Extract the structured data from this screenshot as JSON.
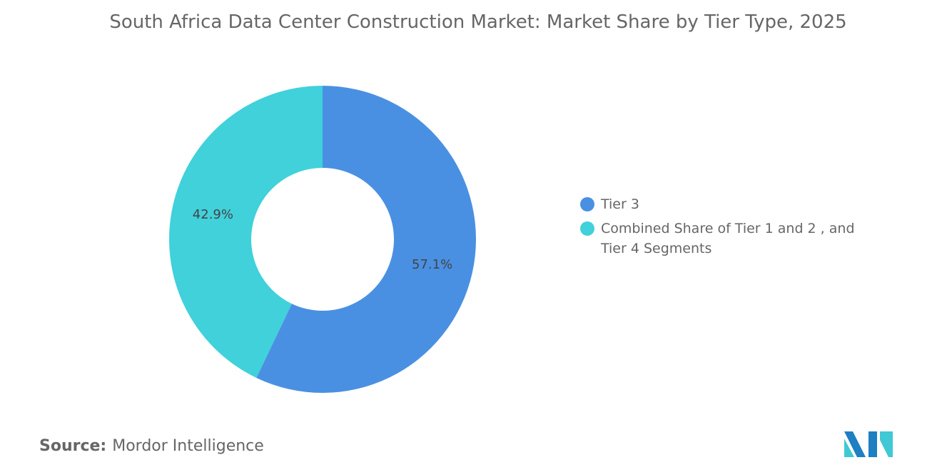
{
  "title": "South Africa Data Center Construction Market: Market Share by Tier Type, 2025",
  "chart_data": {
    "type": "pie",
    "donut": true,
    "title": "South Africa Data Center Construction Market: Market Share by Tier Type, 2025",
    "categories": [
      "Tier 3",
      "Combined Share of Tier 1 and 2 , and Tier 4 Segments"
    ],
    "values": [
      57.1,
      42.9
    ],
    "data_labels": [
      "57.1%",
      "42.9%"
    ],
    "colors": [
      "#4a90e2",
      "#40d1db"
    ],
    "legend_position": "right"
  },
  "source": {
    "label": "Source:",
    "value": "Mordor Intelligence"
  },
  "logo": {
    "color_dark": "#1e7fc2",
    "color_light": "#40c8d4"
  }
}
